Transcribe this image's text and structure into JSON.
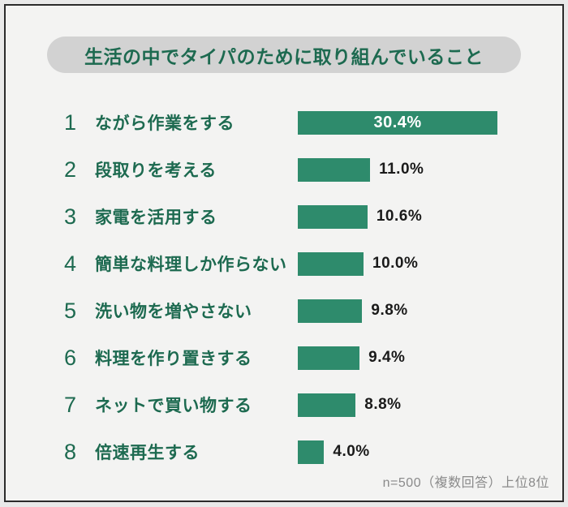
{
  "title": "生活の中でタイパのために取り組んでいること",
  "footnote": "n=500（複数回答）上位8位",
  "colors": {
    "bar": "#2e8b6c",
    "green_text": "#1d6a50",
    "pill_bg": "#d2d2d2",
    "value_text": "#1a1a1a",
    "panel_bg": "#f3f3f2",
    "border": "#2b2b2b",
    "footnote_text": "#8a8a8a"
  },
  "chart_data": {
    "type": "bar",
    "orientation": "horizontal",
    "title": "生活の中でタイパのために取り組んでいること",
    "xlabel": "",
    "ylabel": "",
    "xlim": [
      0,
      32
    ],
    "grid": false,
    "legend": false,
    "note": "n=500（複数回答）上位8位",
    "categories": [
      "ながら作業をする",
      "段取りを考える",
      "家電を活用する",
      "簡単な料理しか作らない",
      "洗い物を増やさない",
      "料理を作り置きする",
      "ネットで買い物する",
      "倍速再生する"
    ],
    "values": [
      30.4,
      11.0,
      10.6,
      10.0,
      9.8,
      9.4,
      8.8,
      4.0
    ],
    "items": [
      {
        "rank": "1",
        "label": "ながら作業をする",
        "value": 30.4,
        "display": "30.4%"
      },
      {
        "rank": "2",
        "label": "段取りを考える",
        "value": 11.0,
        "display": "11.0%"
      },
      {
        "rank": "3",
        "label": "家電を活用する",
        "value": 10.6,
        "display": "10.6%"
      },
      {
        "rank": "4",
        "label": "簡単な料理しか作らない",
        "value": 10.0,
        "display": "10.0%"
      },
      {
        "rank": "5",
        "label": "洗い物を増やさない",
        "value": 9.8,
        "display": "9.8%"
      },
      {
        "rank": "6",
        "label": "料理を作り置きする",
        "value": 9.4,
        "display": "9.4%"
      },
      {
        "rank": "7",
        "label": "ネットで買い物する",
        "value": 8.8,
        "display": "8.8%"
      },
      {
        "rank": "8",
        "label": "倍速再生する",
        "value": 4.0,
        "display": "4.0%"
      }
    ]
  }
}
